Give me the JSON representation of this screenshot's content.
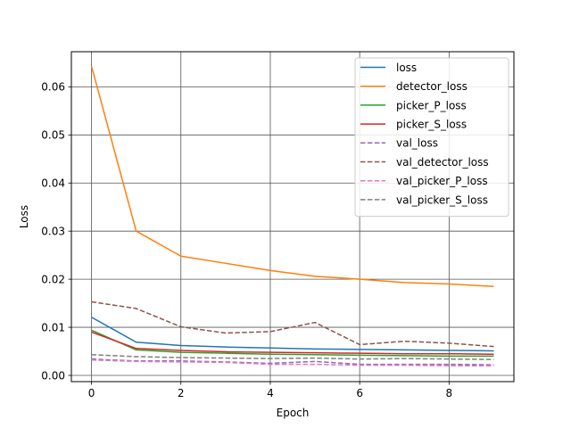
{
  "chart_data": {
    "type": "line",
    "title": "",
    "xlabel": "Epoch",
    "ylabel": "Loss",
    "xlim": [
      -0.45,
      9.45
    ],
    "ylim": [
      -0.0013,
      0.0673
    ],
    "xticks": [
      0,
      2,
      4,
      6,
      8
    ],
    "yticks": [
      0.0,
      0.01,
      0.02,
      0.03,
      0.04,
      0.05,
      0.06
    ],
    "ytick_labels": [
      "0.00",
      "0.01",
      "0.02",
      "0.03",
      "0.04",
      "0.05",
      "0.06"
    ],
    "grid": true,
    "legend_position": "top-right",
    "x": [
      0,
      1,
      2,
      3,
      4,
      5,
      6,
      7,
      8,
      9
    ],
    "series": [
      {
        "name": "loss",
        "color": "#1f77b4",
        "dash": "solid",
        "values": [
          0.0121,
          0.0069,
          0.0062,
          0.0059,
          0.0057,
          0.0055,
          0.0054,
          0.0053,
          0.0052,
          0.0051
        ]
      },
      {
        "name": "detector_loss",
        "color": "#ff7f0e",
        "dash": "solid",
        "values": [
          0.0643,
          0.03,
          0.0248,
          0.0233,
          0.0218,
          0.0206,
          0.02,
          0.0193,
          0.019,
          0.0185
        ]
      },
      {
        "name": "picker_P_loss",
        "color": "#2ca02c",
        "dash": "solid",
        "values": [
          0.0094,
          0.0053,
          0.0048,
          0.0046,
          0.0044,
          0.0043,
          0.0042,
          0.0041,
          0.004,
          0.004
        ]
      },
      {
        "name": "picker_S_loss",
        "color": "#d62728",
        "dash": "solid",
        "values": [
          0.009,
          0.0056,
          0.0052,
          0.0049,
          0.0048,
          0.0047,
          0.0046,
          0.0045,
          0.0045,
          0.0044
        ]
      },
      {
        "name": "val_loss",
        "color": "#9467bd",
        "dash": "dashed",
        "values": [
          0.0034,
          0.003,
          0.003,
          0.0028,
          0.0025,
          0.0029,
          0.0023,
          0.0023,
          0.0023,
          0.0022
        ]
      },
      {
        "name": "val_detector_loss",
        "color": "#8c564b",
        "dash": "dashed",
        "values": [
          0.0153,
          0.0139,
          0.0101,
          0.0088,
          0.0091,
          0.011,
          0.0064,
          0.0071,
          0.0067,
          0.006
        ]
      },
      {
        "name": "val_picker_P_loss",
        "color": "#e377c2",
        "dash": "dashed",
        "values": [
          0.0032,
          0.0029,
          0.0028,
          0.0027,
          0.0023,
          0.0023,
          0.0021,
          0.0021,
          0.002,
          0.002
        ]
      },
      {
        "name": "val_picker_S_loss",
        "color": "#7f7f7f",
        "dash": "dashed",
        "values": [
          0.0043,
          0.0039,
          0.0037,
          0.0036,
          0.0035,
          0.0036,
          0.0034,
          0.0035,
          0.0034,
          0.0033
        ]
      }
    ]
  }
}
